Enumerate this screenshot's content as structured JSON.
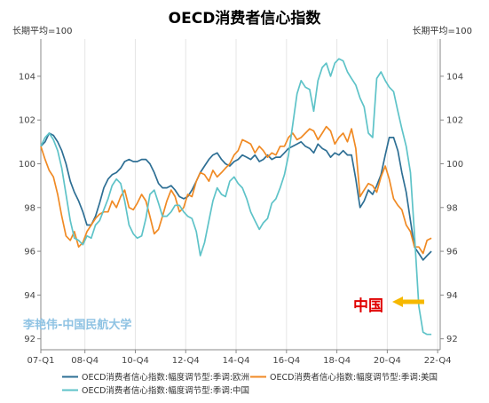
{
  "chart_data": {
    "type": "line",
    "title": "OECD消费者信心指数",
    "left_unit": "长期平均=100",
    "right_unit": "长期平均=100",
    "ylim": [
      91.5,
      105.7
    ],
    "yticks": [
      92,
      94,
      96,
      98,
      100,
      102,
      104
    ],
    "x_range": [
      2007.0,
      2022.85
    ],
    "x_ticks": [
      {
        "label": "07-Q1",
        "x": 2007.0
      },
      {
        "label": "08-Q4",
        "x": 2008.75
      },
      {
        "label": "10-Q4",
        "x": 2010.75
      },
      {
        "label": "12-Q4",
        "x": 2012.75
      },
      {
        "label": "14-Q4",
        "x": 2014.75
      },
      {
        "label": "16-Q4",
        "x": 2016.75
      },
      {
        "label": "18-Q4",
        "x": 2018.75
      },
      {
        "label": "20-Q4",
        "x": 2020.75
      },
      {
        "label": "22-Q4",
        "x": 2022.75
      }
    ],
    "grid": "vertical",
    "series": [
      {
        "name": "OECD消费者信心指数:幅度调节型:季调:欧洲",
        "color": "#2e6f94",
        "points": [
          [
            2007.0,
            100.8
          ],
          [
            2007.17,
            101.0
          ],
          [
            2007.33,
            101.4
          ],
          [
            2007.5,
            101.3
          ],
          [
            2007.67,
            101.0
          ],
          [
            2007.83,
            100.6
          ],
          [
            2008.0,
            100.0
          ],
          [
            2008.17,
            99.2
          ],
          [
            2008.33,
            98.7
          ],
          [
            2008.5,
            98.3
          ],
          [
            2008.67,
            97.8
          ],
          [
            2008.83,
            97.2
          ],
          [
            2009.0,
            97.2
          ],
          [
            2009.17,
            97.6
          ],
          [
            2009.33,
            98.2
          ],
          [
            2009.5,
            98.9
          ],
          [
            2009.67,
            99.3
          ],
          [
            2009.83,
            99.5
          ],
          [
            2010.0,
            99.6
          ],
          [
            2010.17,
            99.8
          ],
          [
            2010.33,
            100.1
          ],
          [
            2010.5,
            100.2
          ],
          [
            2010.67,
            100.1
          ],
          [
            2010.83,
            100.1
          ],
          [
            2011.0,
            100.2
          ],
          [
            2011.17,
            100.2
          ],
          [
            2011.33,
            100.0
          ],
          [
            2011.5,
            99.6
          ],
          [
            2011.67,
            99.1
          ],
          [
            2011.83,
            98.9
          ],
          [
            2012.0,
            98.9
          ],
          [
            2012.17,
            99.0
          ],
          [
            2012.33,
            98.8
          ],
          [
            2012.5,
            98.5
          ],
          [
            2012.67,
            98.4
          ],
          [
            2012.83,
            98.5
          ],
          [
            2013.0,
            98.8
          ],
          [
            2013.17,
            99.2
          ],
          [
            2013.33,
            99.6
          ],
          [
            2013.5,
            99.9
          ],
          [
            2013.67,
            100.2
          ],
          [
            2013.83,
            100.4
          ],
          [
            2014.0,
            100.5
          ],
          [
            2014.17,
            100.2
          ],
          [
            2014.33,
            100.0
          ],
          [
            2014.5,
            99.9
          ],
          [
            2014.67,
            100.1
          ],
          [
            2014.83,
            100.2
          ],
          [
            2015.0,
            100.4
          ],
          [
            2015.17,
            100.3
          ],
          [
            2015.33,
            100.2
          ],
          [
            2015.5,
            100.4
          ],
          [
            2015.67,
            100.1
          ],
          [
            2015.83,
            100.2
          ],
          [
            2016.0,
            100.4
          ],
          [
            2016.17,
            100.2
          ],
          [
            2016.33,
            100.3
          ],
          [
            2016.5,
            100.3
          ],
          [
            2016.67,
            100.5
          ],
          [
            2016.83,
            100.7
          ],
          [
            2017.0,
            100.8
          ],
          [
            2017.17,
            100.9
          ],
          [
            2017.33,
            101.0
          ],
          [
            2017.5,
            100.8
          ],
          [
            2017.67,
            100.7
          ],
          [
            2017.83,
            100.5
          ],
          [
            2018.0,
            100.9
          ],
          [
            2018.17,
            100.7
          ],
          [
            2018.33,
            100.6
          ],
          [
            2018.5,
            100.3
          ],
          [
            2018.67,
            100.5
          ],
          [
            2018.83,
            100.4
          ],
          [
            2019.0,
            100.6
          ],
          [
            2019.17,
            100.4
          ],
          [
            2019.33,
            100.4
          ],
          [
            2019.5,
            99.3
          ],
          [
            2019.67,
            98.0
          ],
          [
            2019.83,
            98.3
          ],
          [
            2020.0,
            98.8
          ],
          [
            2020.17,
            98.6
          ],
          [
            2020.33,
            99.0
          ],
          [
            2020.5,
            99.5
          ],
          [
            2020.67,
            100.4
          ],
          [
            2020.83,
            101.2
          ],
          [
            2021.0,
            101.2
          ],
          [
            2021.17,
            100.6
          ],
          [
            2021.33,
            99.6
          ],
          [
            2021.5,
            98.7
          ],
          [
            2021.67,
            97.4
          ],
          [
            2021.83,
            96.2
          ],
          [
            2022.0,
            95.9
          ],
          [
            2022.17,
            95.6
          ],
          [
            2022.33,
            95.8
          ],
          [
            2022.5,
            96.0
          ]
        ]
      },
      {
        "name": "OECD消费者信心指数:幅度调节型:季调:美国",
        "color": "#f08a24",
        "points": [
          [
            2007.0,
            100.8
          ],
          [
            2007.17,
            100.2
          ],
          [
            2007.33,
            99.7
          ],
          [
            2007.5,
            99.4
          ],
          [
            2007.67,
            98.6
          ],
          [
            2007.83,
            97.6
          ],
          [
            2008.0,
            96.7
          ],
          [
            2008.17,
            96.5
          ],
          [
            2008.33,
            96.9
          ],
          [
            2008.5,
            96.2
          ],
          [
            2008.67,
            96.4
          ],
          [
            2008.83,
            96.9
          ],
          [
            2009.0,
            97.2
          ],
          [
            2009.17,
            97.5
          ],
          [
            2009.33,
            97.7
          ],
          [
            2009.5,
            97.8
          ],
          [
            2009.67,
            97.8
          ],
          [
            2009.83,
            98.3
          ],
          [
            2010.0,
            98.0
          ],
          [
            2010.17,
            98.5
          ],
          [
            2010.33,
            98.8
          ],
          [
            2010.5,
            98.0
          ],
          [
            2010.67,
            97.9
          ],
          [
            2010.83,
            98.2
          ],
          [
            2011.0,
            98.6
          ],
          [
            2011.17,
            98.3
          ],
          [
            2011.33,
            97.6
          ],
          [
            2011.5,
            96.8
          ],
          [
            2011.67,
            97.0
          ],
          [
            2011.83,
            97.6
          ],
          [
            2012.0,
            98.3
          ],
          [
            2012.17,
            98.8
          ],
          [
            2012.33,
            98.5
          ],
          [
            2012.5,
            97.8
          ],
          [
            2012.67,
            98.0
          ],
          [
            2012.83,
            98.6
          ],
          [
            2013.0,
            98.5
          ],
          [
            2013.17,
            99.2
          ],
          [
            2013.33,
            99.6
          ],
          [
            2013.5,
            99.5
          ],
          [
            2013.67,
            99.2
          ],
          [
            2013.83,
            99.7
          ],
          [
            2014.0,
            99.4
          ],
          [
            2014.17,
            99.6
          ],
          [
            2014.33,
            99.8
          ],
          [
            2014.5,
            100.0
          ],
          [
            2014.67,
            100.4
          ],
          [
            2014.83,
            100.6
          ],
          [
            2015.0,
            101.1
          ],
          [
            2015.17,
            101.0
          ],
          [
            2015.33,
            100.9
          ],
          [
            2015.5,
            100.5
          ],
          [
            2015.67,
            100.8
          ],
          [
            2015.83,
            100.6
          ],
          [
            2016.0,
            100.3
          ],
          [
            2016.17,
            100.5
          ],
          [
            2016.33,
            100.4
          ],
          [
            2016.5,
            100.8
          ],
          [
            2016.67,
            100.8
          ],
          [
            2016.83,
            101.2
          ],
          [
            2017.0,
            101.4
          ],
          [
            2017.17,
            101.1
          ],
          [
            2017.33,
            101.2
          ],
          [
            2017.5,
            101.4
          ],
          [
            2017.67,
            101.6
          ],
          [
            2017.83,
            101.5
          ],
          [
            2018.0,
            101.1
          ],
          [
            2018.17,
            101.4
          ],
          [
            2018.33,
            101.7
          ],
          [
            2018.5,
            101.5
          ],
          [
            2018.67,
            100.9
          ],
          [
            2018.83,
            101.2
          ],
          [
            2019.0,
            101.4
          ],
          [
            2019.17,
            101.0
          ],
          [
            2019.33,
            101.6
          ],
          [
            2019.5,
            100.7
          ],
          [
            2019.67,
            98.5
          ],
          [
            2019.83,
            98.8
          ],
          [
            2020.0,
            99.1
          ],
          [
            2020.17,
            99.0
          ],
          [
            2020.33,
            98.7
          ],
          [
            2020.5,
            99.4
          ],
          [
            2020.67,
            99.9
          ],
          [
            2020.83,
            99.3
          ],
          [
            2021.0,
            98.4
          ],
          [
            2021.17,
            98.1
          ],
          [
            2021.33,
            97.9
          ],
          [
            2021.5,
            97.2
          ],
          [
            2021.67,
            96.9
          ],
          [
            2021.83,
            96.2
          ],
          [
            2022.0,
            96.2
          ],
          [
            2022.17,
            95.9
          ],
          [
            2022.33,
            96.5
          ],
          [
            2022.5,
            96.6
          ]
        ]
      },
      {
        "name": "OECD消费者信心指数:幅度调节型:季调:中国",
        "color": "#5ec3c8",
        "points": [
          [
            2007.0,
            100.8
          ],
          [
            2007.17,
            101.2
          ],
          [
            2007.33,
            101.4
          ],
          [
            2007.5,
            101.1
          ],
          [
            2007.67,
            100.6
          ],
          [
            2007.83,
            99.8
          ],
          [
            2008.0,
            98.6
          ],
          [
            2008.17,
            97.4
          ],
          [
            2008.33,
            96.6
          ],
          [
            2008.5,
            96.5
          ],
          [
            2008.67,
            96.3
          ],
          [
            2008.83,
            96.7
          ],
          [
            2009.0,
            96.6
          ],
          [
            2009.17,
            97.2
          ],
          [
            2009.33,
            97.4
          ],
          [
            2009.5,
            97.9
          ],
          [
            2009.67,
            98.4
          ],
          [
            2009.83,
            99.0
          ],
          [
            2010.0,
            99.3
          ],
          [
            2010.17,
            99.1
          ],
          [
            2010.33,
            98.3
          ],
          [
            2010.5,
            97.2
          ],
          [
            2010.67,
            96.8
          ],
          [
            2010.83,
            96.6
          ],
          [
            2011.0,
            96.7
          ],
          [
            2011.17,
            97.5
          ],
          [
            2011.33,
            98.6
          ],
          [
            2011.5,
            98.8
          ],
          [
            2011.67,
            98.2
          ],
          [
            2011.83,
            97.6
          ],
          [
            2012.0,
            97.6
          ],
          [
            2012.17,
            97.8
          ],
          [
            2012.33,
            98.1
          ],
          [
            2012.5,
            98.1
          ],
          [
            2012.67,
            97.8
          ],
          [
            2012.83,
            97.6
          ],
          [
            2013.0,
            97.5
          ],
          [
            2013.17,
            96.9
          ],
          [
            2013.33,
            95.8
          ],
          [
            2013.5,
            96.4
          ],
          [
            2013.67,
            97.4
          ],
          [
            2013.83,
            98.3
          ],
          [
            2014.0,
            98.9
          ],
          [
            2014.17,
            98.6
          ],
          [
            2014.33,
            98.5
          ],
          [
            2014.5,
            99.2
          ],
          [
            2014.67,
            99.4
          ],
          [
            2014.83,
            99.1
          ],
          [
            2015.0,
            98.9
          ],
          [
            2015.17,
            98.4
          ],
          [
            2015.33,
            97.8
          ],
          [
            2015.5,
            97.4
          ],
          [
            2015.67,
            97.0
          ],
          [
            2015.83,
            97.3
          ],
          [
            2016.0,
            97.5
          ],
          [
            2016.17,
            98.2
          ],
          [
            2016.33,
            98.4
          ],
          [
            2016.5,
            98.9
          ],
          [
            2016.67,
            99.5
          ],
          [
            2016.83,
            100.4
          ],
          [
            2017.0,
            101.8
          ],
          [
            2017.17,
            103.2
          ],
          [
            2017.33,
            103.8
          ],
          [
            2017.5,
            103.5
          ],
          [
            2017.67,
            103.4
          ],
          [
            2017.83,
            102.4
          ],
          [
            2018.0,
            103.8
          ],
          [
            2018.17,
            104.4
          ],
          [
            2018.33,
            104.6
          ],
          [
            2018.5,
            104.0
          ],
          [
            2018.67,
            104.6
          ],
          [
            2018.83,
            104.8
          ],
          [
            2019.0,
            104.7
          ],
          [
            2019.17,
            104.2
          ],
          [
            2019.33,
            103.9
          ],
          [
            2019.5,
            103.6
          ],
          [
            2019.67,
            103.0
          ],
          [
            2019.83,
            102.6
          ],
          [
            2020.0,
            101.4
          ],
          [
            2020.17,
            101.2
          ],
          [
            2020.33,
            103.9
          ],
          [
            2020.5,
            104.2
          ],
          [
            2020.67,
            103.8
          ],
          [
            2020.83,
            103.5
          ],
          [
            2021.0,
            103.3
          ],
          [
            2021.17,
            102.4
          ],
          [
            2021.33,
            101.6
          ],
          [
            2021.5,
            100.8
          ],
          [
            2021.67,
            99.6
          ],
          [
            2021.83,
            96.8
          ],
          [
            2022.0,
            93.5
          ],
          [
            2022.17,
            92.3
          ],
          [
            2022.33,
            92.2
          ],
          [
            2022.5,
            92.2
          ]
        ]
      }
    ],
    "annotations": [
      {
        "text": "中国",
        "color": "#e00000",
        "arrow_color": "#f6b800"
      }
    ]
  },
  "watermark": "李艳伟-中国民航大学"
}
